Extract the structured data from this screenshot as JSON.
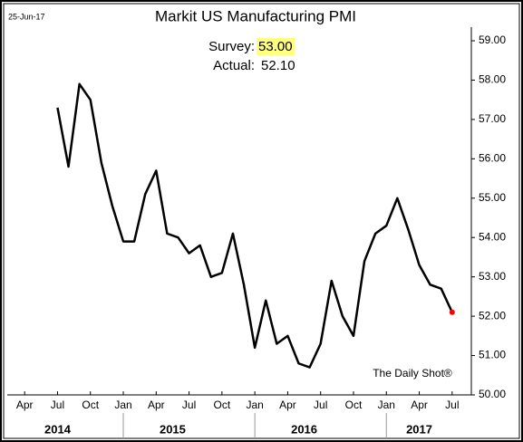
{
  "chart_data": {
    "type": "line",
    "title": "Markit US Manufacturing PMI",
    "date_note": "25-Jun-17",
    "annotations": {
      "survey_label": "Survey:",
      "survey_value": "53.00",
      "actual_label": "Actual:",
      "actual_value": "52.10"
    },
    "source": "The Daily Shot®",
    "x": [
      "2014-07",
      "2014-08",
      "2014-09",
      "2014-10",
      "2014-11",
      "2014-12",
      "2015-01",
      "2015-02",
      "2015-03",
      "2015-04",
      "2015-05",
      "2015-06",
      "2015-07",
      "2015-08",
      "2015-09",
      "2015-10",
      "2015-11",
      "2015-12",
      "2016-01",
      "2016-02",
      "2016-03",
      "2016-04",
      "2016-05",
      "2016-06",
      "2016-07",
      "2016-08",
      "2016-09",
      "2016-10",
      "2016-11",
      "2016-12",
      "2017-01",
      "2017-02",
      "2017-03",
      "2017-04",
      "2017-05",
      "2017-06",
      "2017-07"
    ],
    "series": [
      {
        "name": "Markit US Manufacturing PMI",
        "color": "#000000",
        "last_point_color": "#ff0000",
        "values": [
          57.3,
          55.8,
          57.9,
          57.5,
          55.9,
          54.8,
          53.9,
          53.9,
          55.1,
          55.7,
          54.1,
          54.0,
          53.6,
          53.8,
          53.0,
          53.1,
          54.1,
          52.8,
          51.2,
          52.4,
          51.3,
          51.5,
          50.8,
          50.7,
          51.3,
          52.9,
          52.0,
          51.5,
          53.4,
          54.1,
          54.3,
          55.0,
          54.2,
          53.3,
          52.8,
          52.7,
          52.1
        ]
      }
    ],
    "xlim": [
      "2014-02",
      "2017-09"
    ],
    "xticks": [
      {
        "value": "2014-04",
        "label": "Apr"
      },
      {
        "value": "2014-07",
        "label": "Jul"
      },
      {
        "value": "2014-10",
        "label": "Oct"
      },
      {
        "value": "2015-01",
        "label": "Jan"
      },
      {
        "value": "2015-04",
        "label": "Apr"
      },
      {
        "value": "2015-07",
        "label": "Jul"
      },
      {
        "value": "2015-10",
        "label": "Oct"
      },
      {
        "value": "2016-01",
        "label": "Jan"
      },
      {
        "value": "2016-04",
        "label": "Apr"
      },
      {
        "value": "2016-07",
        "label": "Jul"
      },
      {
        "value": "2016-10",
        "label": "Oct"
      },
      {
        "value": "2017-01",
        "label": "Jan"
      },
      {
        "value": "2017-04",
        "label": "Apr"
      },
      {
        "value": "2017-07",
        "label": "Jul"
      }
    ],
    "years": [
      "2014",
      "2015",
      "2016",
      "2017"
    ],
    "ylim": [
      50,
      59
    ],
    "yticks": [
      {
        "value": 50,
        "label": "50.00"
      },
      {
        "value": 51,
        "label": "51.00"
      },
      {
        "value": 52,
        "label": "52.00"
      },
      {
        "value": 53,
        "label": "53.00"
      },
      {
        "value": 54,
        "label": "54.00"
      },
      {
        "value": 55,
        "label": "55.00"
      },
      {
        "value": 56,
        "label": "56.00"
      },
      {
        "value": 57,
        "label": "57.00"
      },
      {
        "value": 58,
        "label": "58.00"
      },
      {
        "value": 59,
        "label": "59.00"
      }
    ],
    "y_axis_side": "right",
    "grid": false
  }
}
